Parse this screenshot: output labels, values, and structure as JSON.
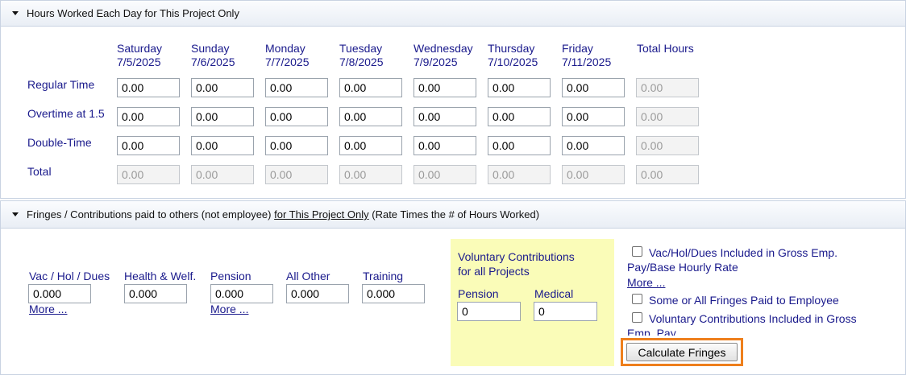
{
  "hours_panel": {
    "title": "Hours Worked Each Day for This Project Only",
    "days": [
      {
        "name": "Saturday",
        "date": "7/5/2025"
      },
      {
        "name": "Sunday",
        "date": "7/6/2025"
      },
      {
        "name": "Monday",
        "date": "7/7/2025"
      },
      {
        "name": "Tuesday",
        "date": "7/8/2025"
      },
      {
        "name": "Wednesday",
        "date": "7/9/2025"
      },
      {
        "name": "Thursday",
        "date": "7/10/2025"
      },
      {
        "name": "Friday",
        "date": "7/11/2025"
      }
    ],
    "total_hours_label": "Total Hours",
    "rows": [
      {
        "label": "Regular Time",
        "values": [
          "0.00",
          "0.00",
          "0.00",
          "0.00",
          "0.00",
          "0.00",
          "0.00"
        ],
        "total": "0.00"
      },
      {
        "label": "Overtime at 1.5",
        "values": [
          "0.00",
          "0.00",
          "0.00",
          "0.00",
          "0.00",
          "0.00",
          "0.00"
        ],
        "total": "0.00"
      },
      {
        "label": "Double-Time",
        "values": [
          "0.00",
          "0.00",
          "0.00",
          "0.00",
          "0.00",
          "0.00",
          "0.00"
        ],
        "total": "0.00"
      },
      {
        "label": "Total",
        "values": [
          "0.00",
          "0.00",
          "0.00",
          "0.00",
          "0.00",
          "0.00",
          "0.00"
        ],
        "total": "0.00"
      }
    ]
  },
  "fringes_panel": {
    "title_start": "Fringes / Contributions paid to others (not employee) ",
    "title_underlined": "for This Project Only",
    "title_end": " (Rate Times the # of Hours Worked)",
    "fields": [
      {
        "label": "Vac / Hol / Dues",
        "value": "0.000",
        "more": "More ..."
      },
      {
        "label": "Health & Welf.",
        "value": "0.000"
      },
      {
        "label": "Pension",
        "value": "0.000",
        "more": "More ..."
      },
      {
        "label": "All Other",
        "value": "0.000"
      },
      {
        "label": "Training",
        "value": "0.000"
      }
    ],
    "voluntary": {
      "heading_line1": "Voluntary Contributions",
      "heading_line2": "for all Projects",
      "pension_label": "Pension",
      "pension_value": "0",
      "medical_label": "Medical",
      "medical_value": "0"
    },
    "options": {
      "vac_included_line1": "Vac/Hol/Dues Included in Gross Emp.",
      "vac_included_line2": "Pay/Base Hourly Rate",
      "vac_more": "More ...",
      "some_all_fringes": "Some or All Fringes Paid to Employee",
      "voluntary_included_line1": "Voluntary Contributions Included in Gross",
      "voluntary_included_line2": "Emp. Pay"
    },
    "calculate_button": "Calculate Fringes"
  },
  "colors": {
    "label_blue": "#1a1a8c",
    "highlight_yellow": "#fafcb8",
    "focus_orange": "#ee7f1c"
  }
}
